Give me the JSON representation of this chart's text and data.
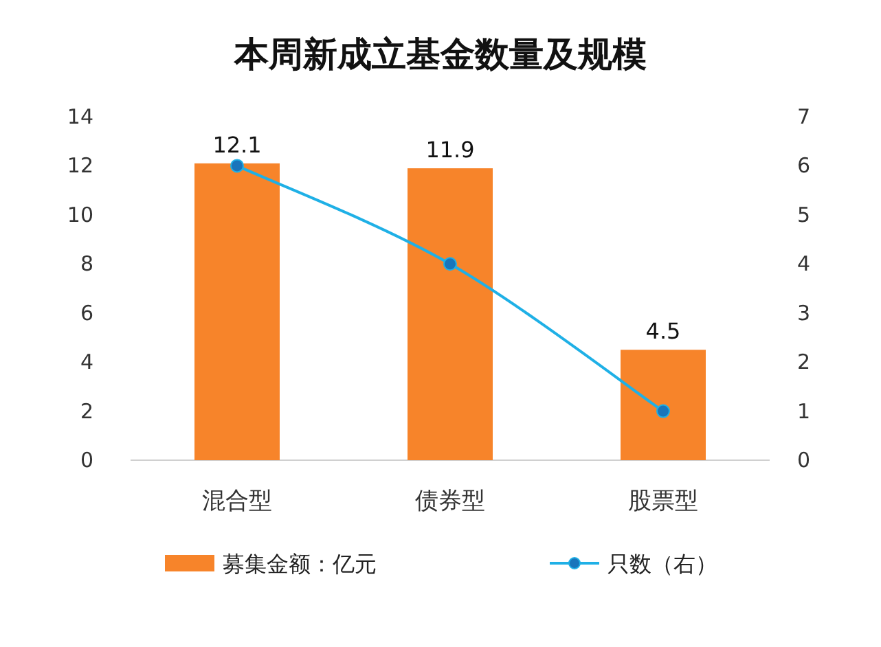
{
  "chart_data": {
    "type": "bar",
    "title": "本周新成立基金数量及规模",
    "categories": [
      "混合型",
      "债券型",
      "股票型"
    ],
    "series": [
      {
        "name": "募集金额：亿元",
        "color": "#f7842a",
        "values": [
          12.1,
          11.9,
          4.5
        ],
        "value_labels": [
          "12.1",
          "11.9",
          "4.5"
        ]
      },
      {
        "name": "只数（右）",
        "type": "line",
        "axis": "y2",
        "color": "#1fb0e6",
        "marker": "circle",
        "values": [
          6,
          4,
          1
        ]
      }
    ],
    "ylim": [
      0,
      14
    ],
    "yticks": [
      0,
      2,
      4,
      6,
      8,
      10,
      12,
      14
    ],
    "y2lim": [
      0,
      7
    ],
    "y2ticks": [
      0,
      1,
      2,
      3,
      4,
      5,
      6,
      7
    ],
    "legend": "bottom"
  }
}
